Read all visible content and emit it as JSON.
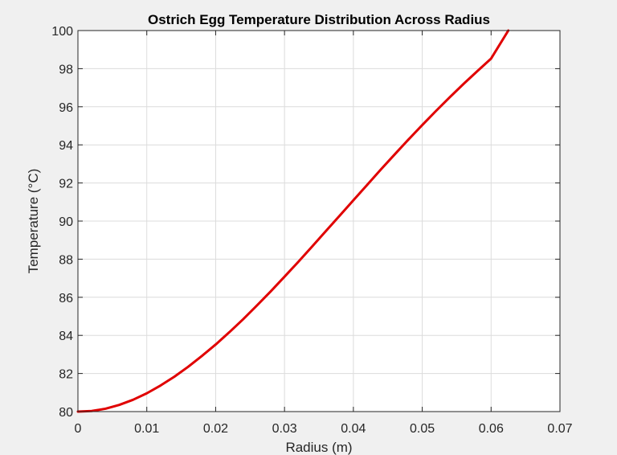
{
  "chart_data": {
    "type": "line",
    "title": "Ostrich Egg Temperature Distribution Across Radius",
    "xlabel": "Radius (m)",
    "ylabel": "Temperature (°C)",
    "xlim": [
      0,
      0.07
    ],
    "ylim": [
      80,
      100
    ],
    "xticks": [
      0,
      0.01,
      0.02,
      0.03,
      0.04,
      0.05,
      0.06,
      0.07
    ],
    "xtick_labels": [
      "0",
      "0.01",
      "0.02",
      "0.03",
      "0.04",
      "0.05",
      "0.06",
      "0.07"
    ],
    "yticks": [
      80,
      82,
      84,
      86,
      88,
      90,
      92,
      94,
      96,
      98,
      100
    ],
    "ytick_labels": [
      "80",
      "82",
      "84",
      "86",
      "88",
      "90",
      "92",
      "94",
      "96",
      "98",
      "100"
    ],
    "grid": true,
    "series": [
      {
        "color": "#e00000",
        "x": [
          0,
          0.002,
          0.004,
          0.006,
          0.008,
          0.01,
          0.012,
          0.014,
          0.016,
          0.018,
          0.02,
          0.022,
          0.024,
          0.026,
          0.028,
          0.03,
          0.032,
          0.034,
          0.036,
          0.038,
          0.04,
          0.042,
          0.044,
          0.046,
          0.048,
          0.05,
          0.052,
          0.054,
          0.056,
          0.058,
          0.06,
          0.0625
        ],
        "values": [
          80.0,
          80.03,
          80.15,
          80.35,
          80.62,
          80.96,
          81.37,
          81.83,
          82.35,
          82.92,
          83.52,
          84.17,
          84.85,
          85.57,
          86.31,
          87.08,
          87.86,
          88.66,
          89.47,
          90.28,
          91.09,
          91.9,
          92.71,
          93.5,
          94.28,
          95.04,
          95.78,
          96.5,
          97.2,
          97.87,
          98.53,
          100.0
        ]
      }
    ]
  }
}
